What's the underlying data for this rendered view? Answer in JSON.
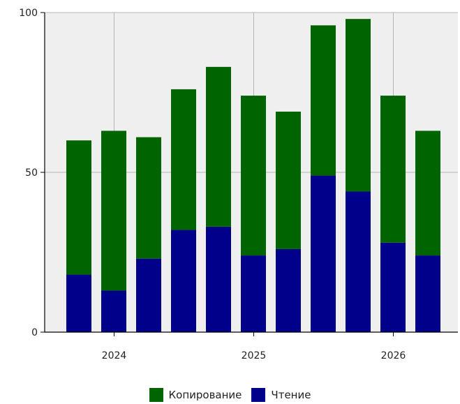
{
  "chart_data": {
    "type": "bar",
    "stacked": true,
    "x": [
      "2023-10",
      "2024-01",
      "2024-04",
      "2024-07",
      "2024-10",
      "2025-01",
      "2025-04",
      "2025-07",
      "2025-10",
      "2026-01",
      "2026-04"
    ],
    "x_tick_labels": [
      "2024",
      "2025",
      "2026"
    ],
    "y_tick_labels": [
      "0",
      "50",
      "100"
    ],
    "ylim": [
      0,
      100
    ],
    "grid": true,
    "legend_position": "bottom-center",
    "series": [
      {
        "name": "Чтение",
        "color": "#00008b",
        "values": [
          18,
          13,
          23,
          32,
          33,
          24,
          26,
          49,
          44,
          28,
          24
        ]
      },
      {
        "name": "Копирование",
        "color": "#006400",
        "values": [
          42,
          50,
          38,
          44,
          50,
          50,
          43,
          47,
          54,
          46,
          39
        ]
      }
    ],
    "legend": [
      "Копирование",
      "Чтение"
    ],
    "plot_background": "#efefef",
    "grid_color": "#b5b5b5"
  }
}
